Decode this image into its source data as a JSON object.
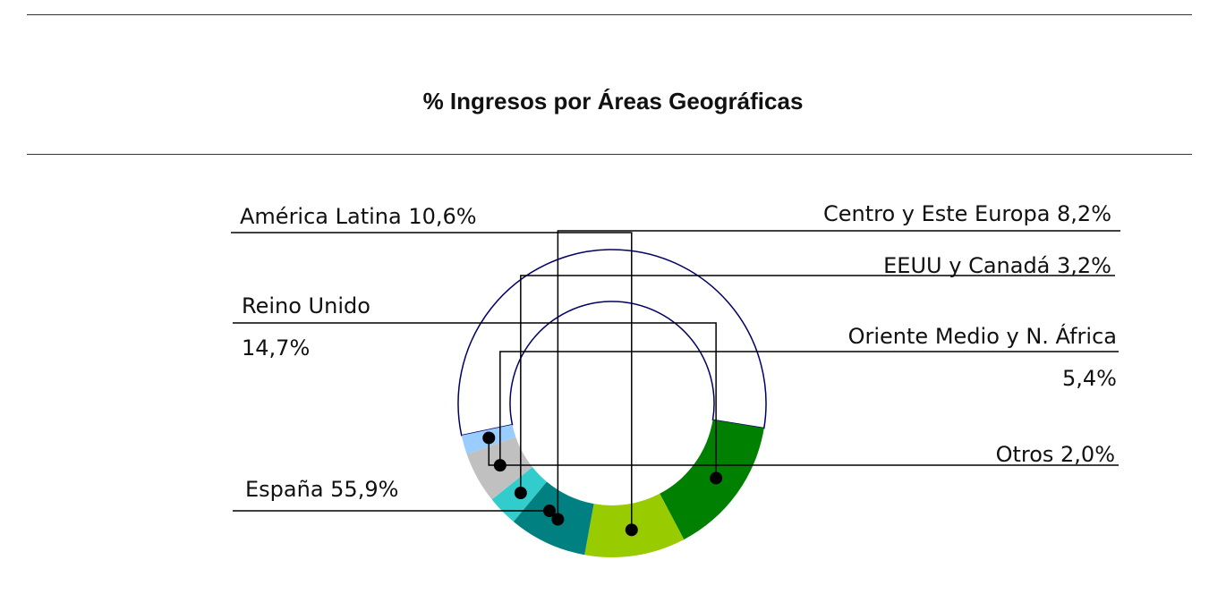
{
  "chart_data": {
    "type": "pie",
    "title": "% Ingresos por Áreas Geográficas",
    "slices": [
      {
        "label": "España 55,9%",
        "name": "España",
        "value": 55.9,
        "color": "#ffffff"
      },
      {
        "label": "Reino Unido",
        "label2": "14,7%",
        "name": "Reino Unido",
        "value": 14.7,
        "color": "#008000"
      },
      {
        "label": "América Latina 10,6%",
        "name": "América Latina",
        "value": 10.6,
        "color": "#99cc00"
      },
      {
        "label": "Centro y Este Europa 8,2%",
        "name": "Centro y Este Europa",
        "value": 8.2,
        "color": "#008080"
      },
      {
        "label": "EEUU y Canadá 3,2%",
        "name": "EEUU y Canadá",
        "value": 3.2,
        "color": "#33cccc"
      },
      {
        "label": "Oriente Medio y N. África",
        "label2": "5,4%",
        "name": "Oriente Medio y N. África",
        "value": 5.4,
        "color": "#c0c0c0"
      },
      {
        "label": "Otros 2,0%",
        "name": "Otros",
        "value": 2.0,
        "color": "#99ccff"
      }
    ],
    "outline_color": "#000066"
  }
}
